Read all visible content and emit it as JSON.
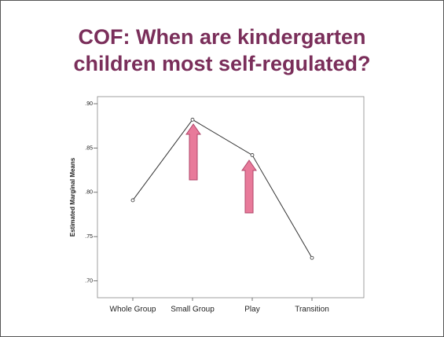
{
  "chart_data": {
    "type": "line",
    "title": "COF: When are kindergarten children most self-regulated?",
    "y_label": "Estimated Marginal Means",
    "categories": [
      "Whole Group",
      "Small Group",
      "Play",
      "Transition"
    ],
    "values": [
      0.791,
      0.882,
      0.842,
      0.726
    ],
    "color": "#333333",
    "ylim": [
      0.681,
      0.908
    ],
    "yticks": [
      {
        "value": 0.7,
        "label": ".70"
      },
      {
        "value": 0.75,
        "label": ".75"
      },
      {
        "value": 0.8,
        "label": ".80"
      },
      {
        "value": 0.85,
        "label": ".85"
      },
      {
        "value": 0.9,
        "label": ".90"
      }
    ],
    "grid": false
  }
}
